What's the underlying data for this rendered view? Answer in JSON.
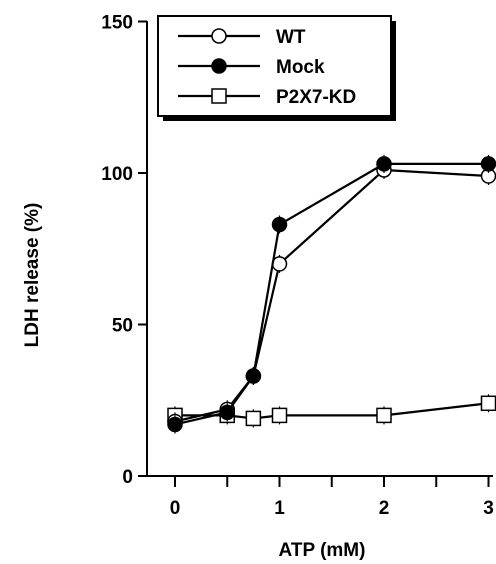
{
  "chart_data": {
    "type": "line",
    "xlabel": "ATP (mM)",
    "ylabel": "LDH release (%)",
    "xlim": [
      -0.25,
      3.05
    ],
    "ylim": [
      0,
      150
    ],
    "x_ticks": [
      0,
      1,
      2,
      3
    ],
    "x_tick_labels": [
      "0",
      "1",
      "2",
      "3"
    ],
    "x_minor_ticks": [
      0.5,
      1.5,
      2.5
    ],
    "y_ticks": [
      0,
      50,
      100,
      150
    ],
    "y_tick_labels": [
      "0",
      "50",
      "100",
      "150"
    ],
    "legend_position": "top-left",
    "grid": false,
    "series": [
      {
        "name": "WT",
        "marker": "open-circle",
        "x": [
          0,
          0.5,
          0.75,
          1,
          2,
          3
        ],
        "y": [
          18,
          22,
          33,
          70,
          101,
          99
        ]
      },
      {
        "name": "Mock",
        "marker": "filled-circle",
        "x": [
          0,
          0.5,
          0.75,
          1,
          2,
          3
        ],
        "y": [
          17,
          21,
          33,
          83,
          103,
          103
        ]
      },
      {
        "name": "P2X7-KD",
        "marker": "open-square",
        "x": [
          0,
          0.5,
          0.75,
          1,
          2,
          3
        ],
        "y": [
          20,
          20,
          19,
          20,
          20,
          24
        ]
      }
    ]
  }
}
